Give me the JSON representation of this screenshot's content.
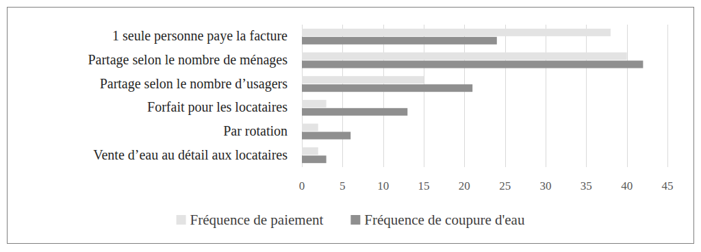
{
  "chart_data": {
    "type": "bar",
    "orientation": "horizontal",
    "categories": [
      "1 seule personne paye la facture",
      "Partage selon le nombre de ménages",
      "Partage selon le nombre d’usagers",
      "Forfait pour les locataires",
      "Par rotation",
      "Vente d’eau au détail aux locataires"
    ],
    "series": [
      {
        "name": "Fréquence de paiement",
        "color": "#e3e3e3",
        "values": [
          38,
          40,
          15,
          3,
          2,
          2
        ]
      },
      {
        "name": "Fréquence de coupure d'eau",
        "color": "#8f8f8f",
        "values": [
          24,
          42,
          21,
          13,
          6,
          3
        ]
      }
    ],
    "xlim": [
      0,
      45
    ],
    "xticks": [
      0,
      5,
      10,
      15,
      20,
      25,
      30,
      35,
      40,
      45
    ],
    "grid": true,
    "legend": "bottom"
  }
}
